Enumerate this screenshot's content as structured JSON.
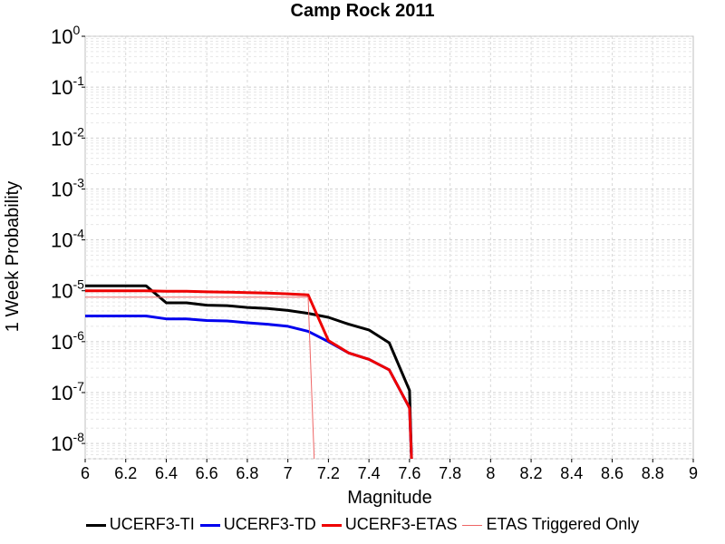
{
  "chart_data": {
    "type": "line",
    "title": "Camp Rock 2011",
    "xlabel": "Magnitude",
    "ylabel": "1 Week Probability",
    "xlim": [
      6,
      9
    ],
    "ylim": [
      5e-09,
      1
    ],
    "yscale": "log",
    "grid": true,
    "legend_position": "bottom",
    "x_ticks": [
      "6",
      "6.2",
      "6.4",
      "6.6",
      "6.8",
      "7",
      "7.2",
      "7.4",
      "7.6",
      "7.8",
      "8",
      "8.2",
      "8.4",
      "8.6",
      "8.8",
      "9"
    ],
    "y_ticks": [
      {
        "base": "10",
        "exp": "0",
        "value": 1
      },
      {
        "base": "10",
        "exp": "-1",
        "value": 0.1
      },
      {
        "base": "10",
        "exp": "-2",
        "value": 0.01
      },
      {
        "base": "10",
        "exp": "-3",
        "value": 0.001
      },
      {
        "base": "10",
        "exp": "-4",
        "value": 0.0001
      },
      {
        "base": "10",
        "exp": "-5",
        "value": 1e-05
      },
      {
        "base": "10",
        "exp": "-6",
        "value": 1e-06
      },
      {
        "base": "10",
        "exp": "-7",
        "value": 1e-07
      },
      {
        "base": "10",
        "exp": "-8",
        "value": 1e-08
      }
    ],
    "series": [
      {
        "name": "UCERF3-TI",
        "color": "#000000",
        "width": 3,
        "x": [
          6.0,
          6.1,
          6.2,
          6.3,
          6.4,
          6.5,
          6.6,
          6.7,
          6.8,
          6.9,
          7.0,
          7.1,
          7.2,
          7.3,
          7.4,
          7.5,
          7.6,
          7.61
        ],
        "y": [
          1.25e-05,
          1.25e-05,
          1.25e-05,
          1.25e-05,
          5.8e-06,
          5.8e-06,
          5.2e-06,
          5.1e-06,
          4.7e-06,
          4.5e-06,
          4.1e-06,
          3.6e-06,
          3e-06,
          2.2e-06,
          1.7e-06,
          9.5e-07,
          1.1e-07,
          5e-09
        ]
      },
      {
        "name": "UCERF3-TD",
        "color": "#0000ee",
        "width": 3,
        "x": [
          6.0,
          6.1,
          6.2,
          6.3,
          6.4,
          6.5,
          6.6,
          6.7,
          6.8,
          6.9,
          7.0,
          7.1,
          7.2,
          7.3,
          7.4,
          7.5,
          7.6,
          7.61
        ],
        "y": [
          3.2e-06,
          3.2e-06,
          3.2e-06,
          3.2e-06,
          2.8e-06,
          2.8e-06,
          2.6e-06,
          2.55e-06,
          2.35e-06,
          2.2e-06,
          2e-06,
          1.6e-06,
          1e-06,
          6e-07,
          4.5e-07,
          2.8e-07,
          5e-08,
          5e-09
        ]
      },
      {
        "name": "UCERF3-ETAS",
        "color": "#ee0000",
        "width": 3,
        "x": [
          6.0,
          6.1,
          6.2,
          6.3,
          6.4,
          6.5,
          6.6,
          6.7,
          6.8,
          6.9,
          7.0,
          7.1,
          7.2,
          7.3,
          7.4,
          7.5,
          7.6,
          7.61
        ],
        "y": [
          1e-05,
          1e-05,
          1e-05,
          1e-05,
          9.8e-06,
          9.8e-06,
          9.5e-06,
          9.4e-06,
          9.2e-06,
          9e-06,
          8.7e-06,
          8.3e-06,
          1.05e-06,
          6e-07,
          4.5e-07,
          2.8e-07,
          5e-08,
          5e-09
        ]
      },
      {
        "name": "ETAS Triggered Only",
        "color": "#ee6666",
        "width": 1,
        "x": [
          6.0,
          6.1,
          6.2,
          6.3,
          6.4,
          6.5,
          6.6,
          6.7,
          6.8,
          6.9,
          7.0,
          7.1,
          7.13
        ],
        "y": [
          7.5e-06,
          7.5e-06,
          7.5e-06,
          7.5e-06,
          7.5e-06,
          7.5e-06,
          7.5e-06,
          7.5e-06,
          7.5e-06,
          7.5e-06,
          7.5e-06,
          7.5e-06,
          5e-09
        ]
      }
    ]
  }
}
